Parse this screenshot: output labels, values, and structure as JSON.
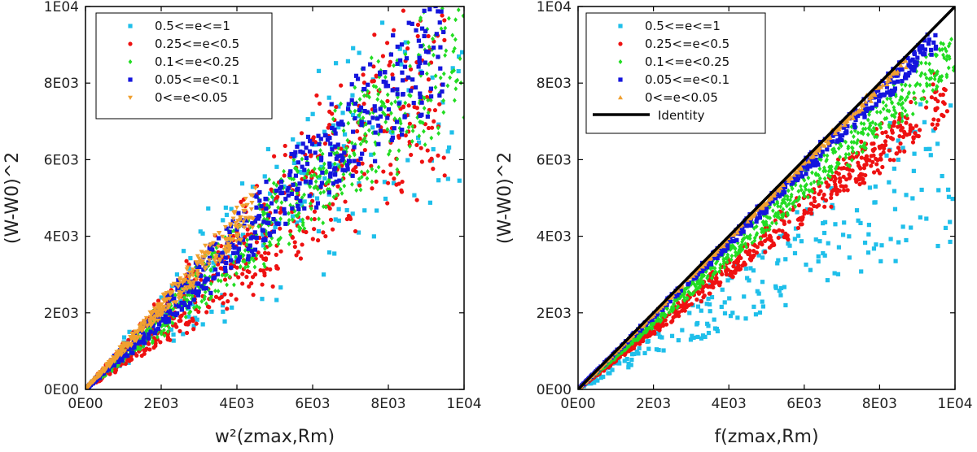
{
  "chart_data": [
    {
      "type": "scatter",
      "panel": "left",
      "xlabel": "w²(zmax,Rm)",
      "ylabel": "(W-W0)^2",
      "xlim": [
        0,
        10000
      ],
      "ylim": [
        0,
        10000
      ],
      "xticks": [
        0,
        2000,
        4000,
        6000,
        8000,
        10000
      ],
      "xtick_labels": [
        "0E00",
        "2E03",
        "4E03",
        "6E03",
        "8E03",
        "1E04"
      ],
      "yticks": [
        0,
        2000,
        4000,
        6000,
        8000,
        10000
      ],
      "ytick_labels": [
        "0E00",
        "2E03",
        "4E03",
        "6E03",
        "8E03",
        "1E04"
      ],
      "legend_position": "top-left",
      "series": [
        {
          "name": "0.5<=e<=1",
          "color": "#1fbfea",
          "marker": "square",
          "slope_range": [
            0.55,
            1.25
          ],
          "x_max": 10000,
          "count": 230,
          "spread": 0.2
        },
        {
          "name": "0.25<=e<0.5",
          "color": "#ee1111",
          "marker": "circle",
          "slope_range": [
            0.6,
            1.15
          ],
          "x_max": 9500,
          "count": 650,
          "spread": 0.1
        },
        {
          "name": "0.1<=e<0.25",
          "color": "#22dd22",
          "marker": "diamond",
          "slope_range": [
            0.72,
            1.08
          ],
          "x_max": 10000,
          "count": 750,
          "spread": 0.07
        },
        {
          "name": "0.05<=e<0.1",
          "color": "#1515dd",
          "marker": "square",
          "slope_range": [
            0.8,
            1.12
          ],
          "x_max": 9500,
          "count": 550,
          "spread": 0.05
        },
        {
          "name": "0<=e<0.05",
          "color": "#f0a030",
          "marker": "triangle-down",
          "slope_range": [
            0.95,
            1.18
          ],
          "x_max": 4500,
          "count": 420,
          "spread": 0.03
        }
      ]
    },
    {
      "type": "scatter",
      "panel": "right",
      "xlabel": "f(zmax,Rm)",
      "ylabel": "(W-W0)^2",
      "xlim": [
        0,
        10000
      ],
      "ylim": [
        0,
        10000
      ],
      "xticks": [
        0,
        2000,
        4000,
        6000,
        8000,
        10000
      ],
      "xtick_labels": [
        "0E00",
        "2E03",
        "4E03",
        "6E03",
        "8E03",
        "1E04"
      ],
      "yticks": [
        0,
        2000,
        4000,
        6000,
        8000,
        10000
      ],
      "ytick_labels": [
        "0E00",
        "2E03",
        "4E03",
        "6E03",
        "8E03",
        "1E04"
      ],
      "legend_position": "top-left",
      "identity_line": {
        "name": "Identity",
        "color": "#000000",
        "x": [
          0,
          10000
        ],
        "y": [
          0,
          10000
        ]
      },
      "series": [
        {
          "name": "0.5<=e<=1",
          "color": "#1fbfea",
          "marker": "square",
          "slope_range": [
            0.4,
            0.8
          ],
          "x_max": 10000,
          "count": 230,
          "spread": 0.06
        },
        {
          "name": "0.25<=e<0.5",
          "color": "#ee1111",
          "marker": "circle",
          "slope_range": [
            0.72,
            0.85
          ],
          "x_max": 9800,
          "count": 650,
          "spread": 0.025
        },
        {
          "name": "0.1<=e<0.25",
          "color": "#22dd22",
          "marker": "diamond",
          "slope_range": [
            0.82,
            0.94
          ],
          "x_max": 10000,
          "count": 750,
          "spread": 0.02
        },
        {
          "name": "0.05<=e<0.1",
          "color": "#1515dd",
          "marker": "square",
          "slope_range": [
            0.93,
            1.0
          ],
          "x_max": 9500,
          "count": 550,
          "spread": 0.01
        },
        {
          "name": "0<=e<0.05",
          "color": "#f0a030",
          "marker": "triangle-up",
          "slope_range": [
            0.97,
            1.0
          ],
          "x_max": 8700,
          "count": 420,
          "spread": 0.006
        }
      ]
    }
  ]
}
